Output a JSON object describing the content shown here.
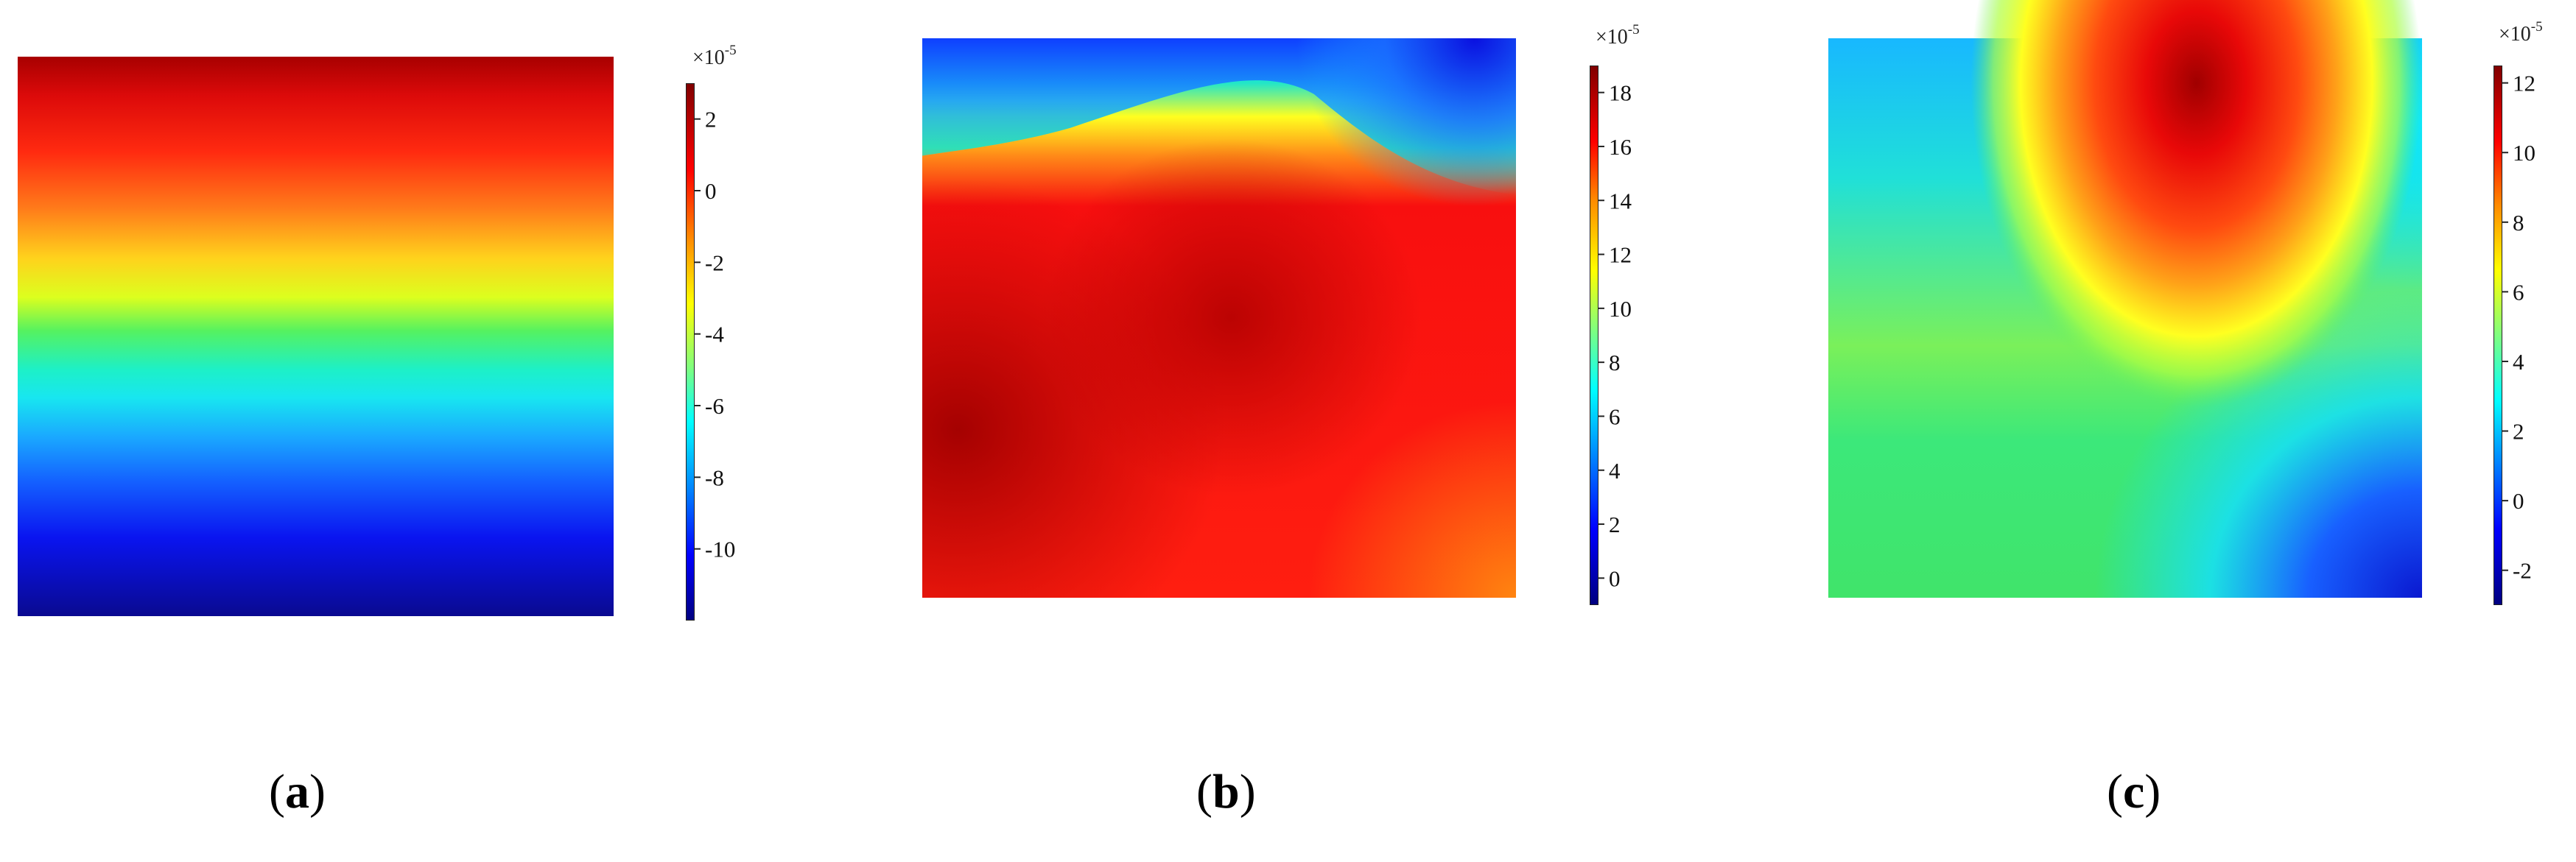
{
  "chart_data": [
    {
      "type": "heatmap",
      "panel_label": "a",
      "colormap": "jet",
      "colorbar": {
        "multiplier": "×10",
        "exponent": "-5",
        "ticks": [
          2,
          0,
          -2,
          -4,
          -6,
          -8,
          -10
        ],
        "tick_labels": [
          "2",
          "0",
          "-2",
          "-4",
          "-6",
          "-8",
          "-10"
        ],
        "range": [
          -12,
          3
        ]
      },
      "field": "horizontal bands: max at top (~2.5), yellow/green transition at ~40–45% height, min at bottom (~-12)"
    },
    {
      "type": "heatmap",
      "panel_label": "b",
      "colormap": "jet",
      "colorbar": {
        "multiplier": "×10",
        "exponent": "-5",
        "ticks": [
          18,
          16,
          14,
          12,
          10,
          8,
          6,
          4,
          2,
          0
        ],
        "tick_labels": [
          "18",
          "16",
          "14",
          "12",
          "10",
          "8",
          "6",
          "4",
          "2",
          "0"
        ],
        "range": [
          -1,
          19
        ]
      },
      "field": "low values (blue) along top edge with a wave-shaped green/yellow band; high values (~18) over the lower and central region"
    },
    {
      "type": "heatmap",
      "panel_label": "c",
      "colormap": "jet",
      "colorbar": {
        "multiplier": "×10",
        "exponent": "-5",
        "ticks": [
          12,
          10,
          8,
          6,
          4,
          2,
          0,
          -2
        ],
        "tick_labels": [
          "12",
          "10",
          "8",
          "6",
          "4",
          "2",
          "0",
          "-2"
        ],
        "range": [
          -3,
          12.5
        ]
      },
      "field": "peak (~12) near top centre-right elongated downward; minimum (~-3) at bottom-right corner; green over lower-left"
    }
  ],
  "captions": {
    "a": {
      "open": "(",
      "letter": "a",
      "close": ")"
    },
    "b": {
      "open": "(",
      "letter": "b",
      "close": ")"
    },
    "c": {
      "open": "(",
      "letter": "c",
      "close": ")"
    }
  }
}
